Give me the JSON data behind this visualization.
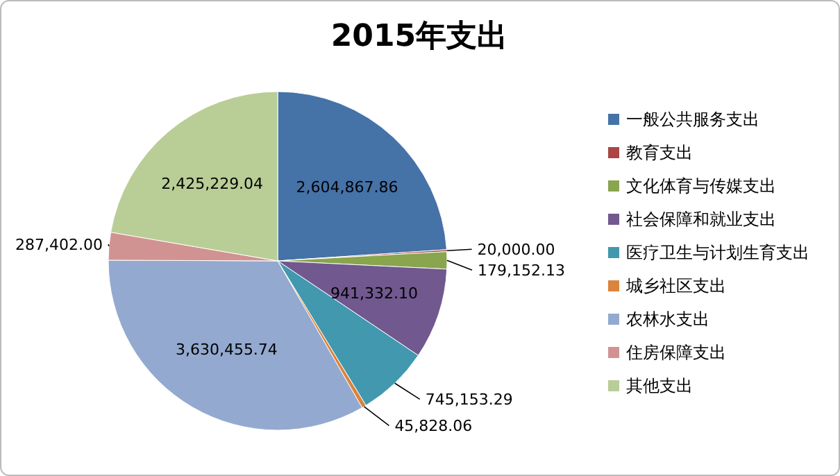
{
  "chart_data": {
    "type": "pie",
    "title": "2015年支出",
    "categories": [
      "一般公共服务支出",
      "教育支出",
      "文化体育与传媒支出",
      "社会保障和就业支出",
      "医疗卫生与计划生育支出",
      "城乡社区支出",
      "农林水支出",
      "住房保障支出",
      "其他支出"
    ],
    "values": [
      2604867.86,
      20000.0,
      179152.13,
      941332.1,
      745153.29,
      45828.06,
      3630455.74,
      287402.0,
      2425229.04
    ],
    "colors": [
      "#4572a7",
      "#aa4643",
      "#89a54e",
      "#71588f",
      "#4198af",
      "#db843d",
      "#93a9cf",
      "#d19392",
      "#b9cd96"
    ],
    "value_labels": [
      "2,604,867.86",
      "20,000.00",
      "179,152.13",
      "941,332.10",
      "745,153.29",
      "45,828.06",
      "3,630,455.74",
      "287,402.00",
      "2,425,229.04"
    ],
    "legend": "right"
  }
}
